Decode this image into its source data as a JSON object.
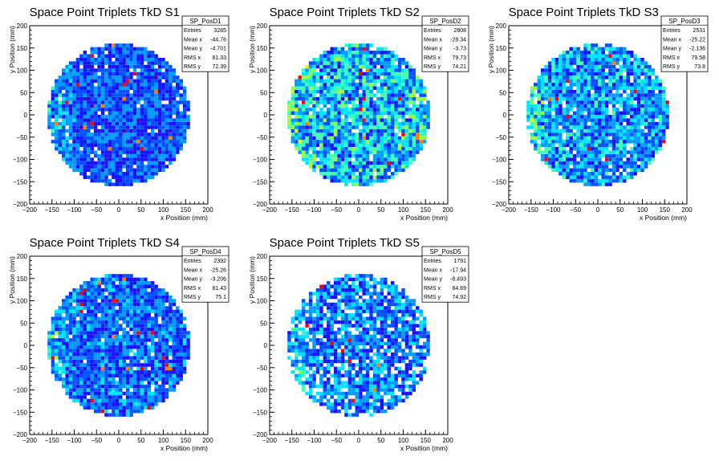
{
  "chart_data": [
    {
      "type": "heatmap",
      "title": "Space Point Triplets TkD S1",
      "xlabel": "x Position (mm)",
      "ylabel": "y Position (mm)",
      "xlim": [
        -200,
        200
      ],
      "ylim": [
        -200,
        200
      ],
      "xticks": [
        "−200",
        "−150",
        "−100",
        "−50",
        "0",
        "50",
        "100",
        "150",
        "200"
      ],
      "yticks": [
        "−200",
        "−150",
        "−100",
        "−50",
        "0",
        "50",
        "100",
        "150",
        "200"
      ],
      "stats": {
        "name": "SP_PosD1",
        "rows": [
          {
            "label": "Entries",
            "value": "3285"
          },
          {
            "label": "Mean x",
            "value": "-44.76"
          },
          {
            "label": "Mean y",
            "value": "-4.701"
          },
          {
            "label": "RMS x",
            "value": "81.33"
          },
          {
            "label": "RMS y",
            "value": "72.39"
          }
        ]
      },
      "intensity": 0.32,
      "edge_boost": 0.35,
      "seed": 11
    },
    {
      "type": "heatmap",
      "title": "Space Point Triplets TkD S2",
      "xlabel": "x Position (mm)",
      "ylabel": "y Position (mm)",
      "xlim": [
        -200,
        200
      ],
      "ylim": [
        -200,
        200
      ],
      "xticks": [
        "−200",
        "−150",
        "−100",
        "−50",
        "0",
        "50",
        "100",
        "150",
        "200"
      ],
      "yticks": [
        "−200",
        "−150",
        "−100",
        "−50",
        "0",
        "50",
        "100",
        "150",
        "200"
      ],
      "stats": {
        "name": "SP_PosD2",
        "rows": [
          {
            "label": "Entries",
            "value": "2808"
          },
          {
            "label": "Mean x",
            "value": "-28.34"
          },
          {
            "label": "Mean y",
            "value": "-3.73"
          },
          {
            "label": "RMS x",
            "value": "79.73"
          },
          {
            "label": "RMS y",
            "value": "74.21"
          }
        ]
      },
      "intensity": 0.52,
      "edge_boost": 0.4,
      "seed": 23
    },
    {
      "type": "heatmap",
      "title": "Space Point Triplets TkD S3",
      "xlabel": "x Position (mm)",
      "ylabel": "y Position (mm)",
      "xlim": [
        -200,
        200
      ],
      "ylim": [
        -200,
        200
      ],
      "xticks": [
        "−200",
        "−150",
        "−100",
        "−50",
        "0",
        "50",
        "100",
        "150",
        "200"
      ],
      "yticks": [
        "−200",
        "−150",
        "−100",
        "−50",
        "0",
        "50",
        "100",
        "150",
        "200"
      ],
      "stats": {
        "name": "SP_PosD3",
        "rows": [
          {
            "label": "Entries",
            "value": "2531"
          },
          {
            "label": "Mean x",
            "value": "-25.22"
          },
          {
            "label": "Mean y",
            "value": "-2.136"
          },
          {
            "label": "RMS x",
            "value": "79.58"
          },
          {
            "label": "RMS y",
            "value": "73.8"
          }
        ]
      },
      "intensity": 0.45,
      "edge_boost": 0.35,
      "seed": 37
    },
    {
      "type": "heatmap",
      "title": "Space Point Triplets TkD S4",
      "xlabel": "x Position (mm)",
      "ylabel": "y Position (mm)",
      "xlim": [
        -200,
        200
      ],
      "ylim": [
        -200,
        200
      ],
      "xticks": [
        "−200",
        "−150",
        "−100",
        "−50",
        "0",
        "50",
        "100",
        "150",
        "200"
      ],
      "yticks": [
        "−200",
        "−150",
        "−100",
        "−50",
        "0",
        "50",
        "100",
        "150",
        "200"
      ],
      "stats": {
        "name": "SP_PosD4",
        "rows": [
          {
            "label": "Entries",
            "value": "2392"
          },
          {
            "label": "Mean x",
            "value": "-25.26"
          },
          {
            "label": "Mean y",
            "value": "-3.206"
          },
          {
            "label": "RMS x",
            "value": "81.43"
          },
          {
            "label": "RMS y",
            "value": "75.1"
          }
        ]
      },
      "intensity": 0.36,
      "edge_boost": 0.3,
      "seed": 51
    },
    {
      "type": "heatmap",
      "title": "Space Point Triplets TkD S5",
      "xlabel": "x Position (mm)",
      "ylabel": "y Position (mm)",
      "xlim": [
        -200,
        200
      ],
      "ylim": [
        -200,
        200
      ],
      "xticks": [
        "−200",
        "−150",
        "−100",
        "−50",
        "0",
        "50",
        "100",
        "150",
        "200"
      ],
      "yticks": [
        "−200",
        "−150",
        "−100",
        "−50",
        "0",
        "50",
        "100",
        "150",
        "200"
      ],
      "stats": {
        "name": "SP_PosD5",
        "rows": [
          {
            "label": "Entries",
            "value": "1791"
          },
          {
            "label": "Mean x",
            "value": "-17.94"
          },
          {
            "label": "Mean y",
            "value": "-8.493"
          },
          {
            "label": "RMS x",
            "value": "84.69"
          },
          {
            "label": "RMS y",
            "value": "74.92"
          }
        ]
      },
      "intensity": 0.4,
      "edge_boost": 0.3,
      "seed": 67,
      "sparse": true
    }
  ]
}
